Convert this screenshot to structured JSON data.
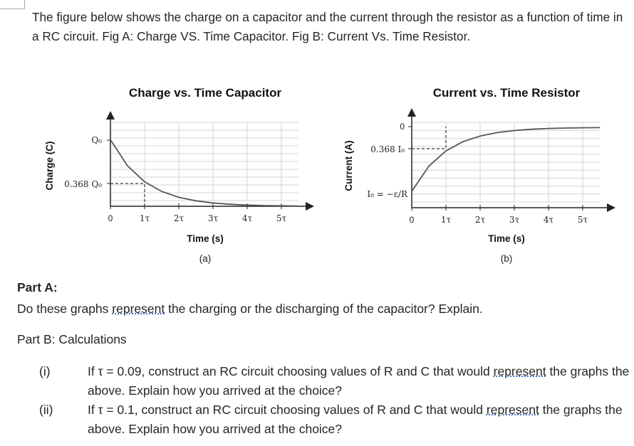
{
  "intro": "The figure below shows the charge on a capacitor and the current through the resistor as a function of time in a RC circuit. Fig A: Charge VS. Time Capacitor. Fig B: Current Vs. Time Resistor.",
  "chart_data": [
    {
      "type": "line",
      "title": "Charge vs. Time Capacitor",
      "xlabel": "Time (s)",
      "ylabel": "Charge (C)",
      "caption": "(a)",
      "x_ticks": [
        "0",
        "1τ",
        "2τ",
        "3τ",
        "4τ",
        "5τ"
      ],
      "y_ticks": [
        "Q₀",
        "0.368 Q₀"
      ],
      "x": [
        0,
        0.5,
        1,
        1.5,
        2,
        2.5,
        3,
        3.5,
        4,
        4.5,
        5,
        5.5
      ],
      "y": [
        1.0,
        0.607,
        0.368,
        0.223,
        0.135,
        0.082,
        0.05,
        0.03,
        0.018,
        0.011,
        0.007,
        0.004
      ],
      "xlim": [
        0,
        5.5
      ],
      "ylim": [
        0,
        1.1
      ],
      "grid": true
    },
    {
      "type": "line",
      "title": "Current vs. Time Resistor",
      "xlabel": "Time (s)",
      "ylabel": "Current (A)",
      "caption": "(b)",
      "x_ticks": [
        "0",
        "1τ",
        "2τ",
        "3τ",
        "4τ",
        "5τ"
      ],
      "y_ticks": [
        "0",
        "0.368 I₀",
        "I₀ = −ε/R"
      ],
      "x": [
        0,
        0.5,
        1,
        1.5,
        2,
        2.5,
        3,
        3.5,
        4,
        4.5,
        5,
        5.5
      ],
      "y": [
        -1.0,
        -0.607,
        -0.368,
        -0.223,
        -0.135,
        -0.082,
        -0.05,
        -0.03,
        -0.018,
        -0.011,
        -0.007,
        -0.004
      ],
      "xlim": [
        0,
        5.5
      ],
      "ylim": [
        -1.1,
        0.1
      ],
      "grid": true
    }
  ],
  "part_a": {
    "heading": "Part A:",
    "question_pre": "Do these graphs ",
    "question_link": "represent",
    "question_post": " the charging or the discharging of the capacitor? Explain."
  },
  "part_b": {
    "heading": "Part B: Calculations",
    "items": [
      {
        "num": "(i)",
        "pre": "If τ = 0.09, construct an RC circuit choosing values of R and C that would ",
        "link": "represent",
        "post": " the graphs the above. Explain how you arrived at the choice?"
      },
      {
        "num": "(ii)",
        "pre": "If τ = 0.1, construct an RC circuit choosing values of R and C that would ",
        "link": "represent",
        "post": " the graphs the above. Explain how you arrived at the choice?"
      }
    ]
  }
}
